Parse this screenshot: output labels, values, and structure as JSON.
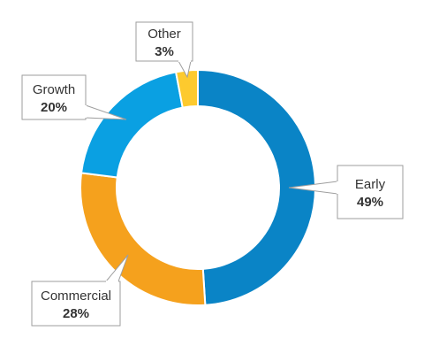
{
  "chart_data": {
    "type": "pie",
    "variant": "donut",
    "start": "12 o'clock",
    "direction": "clockwise",
    "slices": [
      {
        "label": "Early",
        "value": 49,
        "value_label": "49%",
        "color": "#0a84c6"
      },
      {
        "label": "Commercial",
        "value": 28,
        "value_label": "28%",
        "color": "#f5a11d"
      },
      {
        "label": "Growth",
        "value": 20,
        "value_label": "20%",
        "color": "#0aa0e2"
      },
      {
        "label": "Other",
        "value": 3,
        "value_label": "3%",
        "color": "#fdca2e"
      }
    ]
  }
}
